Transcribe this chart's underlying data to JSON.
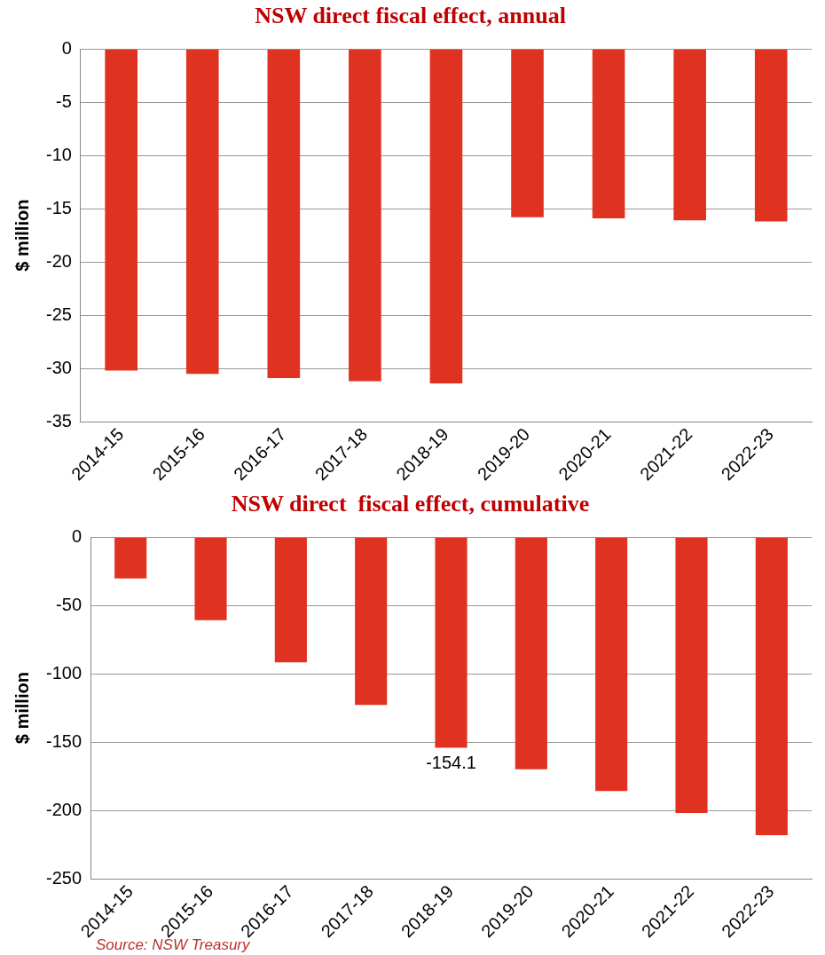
{
  "chart_data": [
    {
      "type": "bar",
      "title": "NSW direct fiscal effect, annual",
      "ylabel": "$ million",
      "categories": [
        "2014-15",
        "2015-16",
        "2016-17",
        "2017-18",
        "2018-19",
        "2019-20",
        "2020-21",
        "2021-22",
        "2022-23"
      ],
      "values": [
        -30.2,
        -30.5,
        -30.9,
        -31.2,
        -31.4,
        -15.8,
        -15.9,
        -16.1,
        -16.2
      ],
      "color": "#e03220",
      "ylim": [
        -35,
        0
      ],
      "yticks": [
        -35,
        -30,
        -25,
        -20,
        -15,
        -10,
        -5,
        0
      ],
      "grid": "y",
      "legend": false
    },
    {
      "type": "bar",
      "title": "NSW direct  fiscal effect, cumulative",
      "ylabel": "$ million",
      "categories": [
        "2014-15",
        "2015-16",
        "2016-17",
        "2017-18",
        "2018-19",
        "2019-20",
        "2020-21",
        "2021-22",
        "2022-23"
      ],
      "values": [
        -30.2,
        -60.7,
        -91.6,
        -122.8,
        -154.1,
        -169.9,
        -185.8,
        -201.9,
        -218.1
      ],
      "color": "#e03220",
      "value_labels": [
        null,
        null,
        null,
        null,
        "-154.1",
        null,
        null,
        null,
        null
      ],
      "ylim": [
        -250,
        0
      ],
      "yticks": [
        -250,
        -200,
        -150,
        -100,
        -50,
        0
      ],
      "grid": "y",
      "legend": false,
      "annotations": [
        "Source: NSW Treasury"
      ]
    }
  ]
}
